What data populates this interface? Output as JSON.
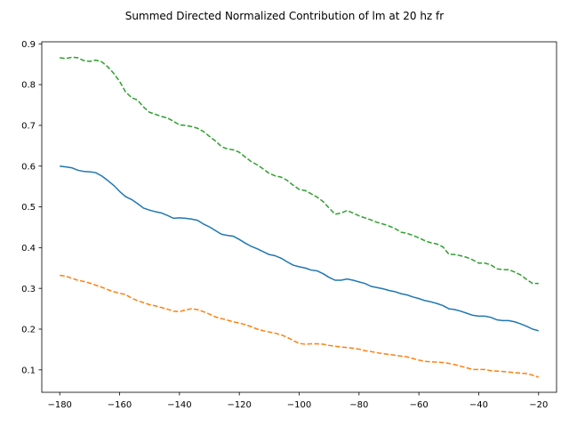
{
  "chart_data": {
    "type": "line",
    "title": "Summed Directed Normalized Contribution of lm at 20 hz fr",
    "xlabel": "",
    "ylabel": "",
    "xlim": [
      -186,
      -14
    ],
    "ylim": [
      0.045,
      0.905
    ],
    "xticks": [
      -180,
      -160,
      -140,
      -120,
      -100,
      -80,
      -60,
      -40,
      -20
    ],
    "xtick_labels": [
      "−180",
      "−160",
      "−140",
      "−120",
      "−100",
      "−80",
      "−60",
      "−40",
      "−20"
    ],
    "yticks": [
      0.1,
      0.2,
      0.3,
      0.4,
      0.5,
      0.6,
      0.7,
      0.8,
      0.9
    ],
    "ytick_labels": [
      "0.1",
      "0.2",
      "0.3",
      "0.4",
      "0.5",
      "0.6",
      "0.7",
      "0.8",
      "0.9"
    ],
    "grid": false,
    "legend": "none",
    "series": [
      {
        "color": "#1f77b4",
        "style": "solid",
        "points": [
          [
            -180,
            0.6
          ],
          [
            -178,
            0.598
          ],
          [
            -176,
            0.596
          ],
          [
            -174,
            0.59
          ],
          [
            -172,
            0.587
          ],
          [
            -170,
            0.586
          ],
          [
            -168,
            0.584
          ],
          [
            -166,
            0.576
          ],
          [
            -164,
            0.565
          ],
          [
            -162,
            0.553
          ],
          [
            -160,
            0.538
          ],
          [
            -158,
            0.525
          ],
          [
            -156,
            0.518
          ],
          [
            -154,
            0.508
          ],
          [
            -152,
            0.497
          ],
          [
            -150,
            0.492
          ],
          [
            -148,
            0.488
          ],
          [
            -146,
            0.485
          ],
          [
            -144,
            0.479
          ],
          [
            -142,
            0.472
          ],
          [
            -140,
            0.473
          ],
          [
            -138,
            0.472
          ],
          [
            -136,
            0.47
          ],
          [
            -134,
            0.467
          ],
          [
            -132,
            0.458
          ],
          [
            -130,
            0.451
          ],
          [
            -128,
            0.442
          ],
          [
            -126,
            0.433
          ],
          [
            -124,
            0.43
          ],
          [
            -122,
            0.428
          ],
          [
            -120,
            0.42
          ],
          [
            -118,
            0.411
          ],
          [
            -116,
            0.403
          ],
          [
            -114,
            0.397
          ],
          [
            -112,
            0.39
          ],
          [
            -110,
            0.383
          ],
          [
            -108,
            0.38
          ],
          [
            -106,
            0.374
          ],
          [
            -104,
            0.365
          ],
          [
            -102,
            0.357
          ],
          [
            -100,
            0.353
          ],
          [
            -98,
            0.35
          ],
          [
            -96,
            0.345
          ],
          [
            -94,
            0.343
          ],
          [
            -92,
            0.336
          ],
          [
            -90,
            0.327
          ],
          [
            -88,
            0.32
          ],
          [
            -86,
            0.32
          ],
          [
            -84,
            0.323
          ],
          [
            -82,
            0.32
          ],
          [
            -80,
            0.316
          ],
          [
            -78,
            0.312
          ],
          [
            -76,
            0.305
          ],
          [
            -74,
            0.302
          ],
          [
            -72,
            0.299
          ],
          [
            -70,
            0.295
          ],
          [
            -68,
            0.292
          ],
          [
            -66,
            0.287
          ],
          [
            -64,
            0.284
          ],
          [
            -62,
            0.279
          ],
          [
            -60,
            0.275
          ],
          [
            -58,
            0.27
          ],
          [
            -56,
            0.267
          ],
          [
            -54,
            0.263
          ],
          [
            -52,
            0.258
          ],
          [
            -50,
            0.25
          ],
          [
            -48,
            0.248
          ],
          [
            -46,
            0.244
          ],
          [
            -44,
            0.239
          ],
          [
            -42,
            0.234
          ],
          [
            -40,
            0.232
          ],
          [
            -38,
            0.232
          ],
          [
            -36,
            0.229
          ],
          [
            -34,
            0.223
          ],
          [
            -32,
            0.221
          ],
          [
            -30,
            0.221
          ],
          [
            -28,
            0.218
          ],
          [
            -26,
            0.213
          ],
          [
            -24,
            0.207
          ],
          [
            -22,
            0.2
          ],
          [
            -20,
            0.196
          ]
        ]
      },
      {
        "color": "#ff7f0e",
        "style": "dashed",
        "points": [
          [
            -180,
            0.332
          ],
          [
            -178,
            0.33
          ],
          [
            -176,
            0.325
          ],
          [
            -174,
            0.32
          ],
          [
            -172,
            0.317
          ],
          [
            -170,
            0.313
          ],
          [
            -168,
            0.308
          ],
          [
            -166,
            0.303
          ],
          [
            -164,
            0.297
          ],
          [
            -162,
            0.292
          ],
          [
            -160,
            0.288
          ],
          [
            -158,
            0.285
          ],
          [
            -156,
            0.276
          ],
          [
            -154,
            0.27
          ],
          [
            -152,
            0.265
          ],
          [
            -150,
            0.26
          ],
          [
            -148,
            0.257
          ],
          [
            -146,
            0.253
          ],
          [
            -144,
            0.249
          ],
          [
            -142,
            0.244
          ],
          [
            -140,
            0.243
          ],
          [
            -138,
            0.247
          ],
          [
            -136,
            0.25
          ],
          [
            -134,
            0.248
          ],
          [
            -132,
            0.243
          ],
          [
            -130,
            0.237
          ],
          [
            -128,
            0.23
          ],
          [
            -126,
            0.226
          ],
          [
            -124,
            0.222
          ],
          [
            -122,
            0.218
          ],
          [
            -120,
            0.215
          ],
          [
            -118,
            0.211
          ],
          [
            -116,
            0.206
          ],
          [
            -114,
            0.2
          ],
          [
            -112,
            0.196
          ],
          [
            -110,
            0.193
          ],
          [
            -108,
            0.19
          ],
          [
            -106,
            0.186
          ],
          [
            -104,
            0.18
          ],
          [
            -102,
            0.172
          ],
          [
            -100,
            0.165
          ],
          [
            -98,
            0.163
          ],
          [
            -96,
            0.164
          ],
          [
            -94,
            0.164
          ],
          [
            -92,
            0.163
          ],
          [
            -90,
            0.16
          ],
          [
            -88,
            0.158
          ],
          [
            -86,
            0.156
          ],
          [
            -84,
            0.155
          ],
          [
            -82,
            0.153
          ],
          [
            -80,
            0.151
          ],
          [
            -78,
            0.147
          ],
          [
            -76,
            0.145
          ],
          [
            -74,
            0.142
          ],
          [
            -72,
            0.14
          ],
          [
            -70,
            0.138
          ],
          [
            -68,
            0.136
          ],
          [
            -66,
            0.134
          ],
          [
            -64,
            0.132
          ],
          [
            -62,
            0.128
          ],
          [
            -60,
            0.124
          ],
          [
            -58,
            0.121
          ],
          [
            -56,
            0.12
          ],
          [
            -54,
            0.119
          ],
          [
            -52,
            0.118
          ],
          [
            -50,
            0.116
          ],
          [
            -48,
            0.113
          ],
          [
            -46,
            0.109
          ],
          [
            -44,
            0.105
          ],
          [
            -42,
            0.101
          ],
          [
            -40,
            0.101
          ],
          [
            -38,
            0.101
          ],
          [
            -36,
            0.098
          ],
          [
            -34,
            0.097
          ],
          [
            -32,
            0.096
          ],
          [
            -30,
            0.095
          ],
          [
            -28,
            0.093
          ],
          [
            -26,
            0.092
          ],
          [
            -24,
            0.091
          ],
          [
            -22,
            0.087
          ],
          [
            -20,
            0.082
          ]
        ]
      },
      {
        "color": "#2ca02c",
        "style": "dashed",
        "points": [
          [
            -180,
            0.866
          ],
          [
            -178,
            0.864
          ],
          [
            -176,
            0.867
          ],
          [
            -174,
            0.866
          ],
          [
            -172,
            0.859
          ],
          [
            -170,
            0.857
          ],
          [
            -168,
            0.86
          ],
          [
            -166,
            0.856
          ],
          [
            -164,
            0.844
          ],
          [
            -162,
            0.828
          ],
          [
            -160,
            0.808
          ],
          [
            -158,
            0.782
          ],
          [
            -156,
            0.768
          ],
          [
            -154,
            0.762
          ],
          [
            -152,
            0.745
          ],
          [
            -150,
            0.732
          ],
          [
            -148,
            0.727
          ],
          [
            -146,
            0.722
          ],
          [
            -144,
            0.718
          ],
          [
            -142,
            0.71
          ],
          [
            -140,
            0.701
          ],
          [
            -138,
            0.7
          ],
          [
            -136,
            0.697
          ],
          [
            -134,
            0.693
          ],
          [
            -132,
            0.685
          ],
          [
            -130,
            0.673
          ],
          [
            -128,
            0.662
          ],
          [
            -126,
            0.648
          ],
          [
            -124,
            0.642
          ],
          [
            -122,
            0.64
          ],
          [
            -120,
            0.634
          ],
          [
            -118,
            0.622
          ],
          [
            -116,
            0.611
          ],
          [
            -114,
            0.603
          ],
          [
            -112,
            0.593
          ],
          [
            -110,
            0.582
          ],
          [
            -108,
            0.576
          ],
          [
            -106,
            0.573
          ],
          [
            -104,
            0.565
          ],
          [
            -102,
            0.553
          ],
          [
            -100,
            0.543
          ],
          [
            -98,
            0.54
          ],
          [
            -96,
            0.532
          ],
          [
            -94,
            0.524
          ],
          [
            -92,
            0.513
          ],
          [
            -90,
            0.497
          ],
          [
            -88,
            0.482
          ],
          [
            -86,
            0.485
          ],
          [
            -84,
            0.491
          ],
          [
            -82,
            0.485
          ],
          [
            -80,
            0.478
          ],
          [
            -78,
            0.473
          ],
          [
            -76,
            0.468
          ],
          [
            -74,
            0.462
          ],
          [
            -72,
            0.458
          ],
          [
            -70,
            0.453
          ],
          [
            -68,
            0.447
          ],
          [
            -66,
            0.438
          ],
          [
            -64,
            0.435
          ],
          [
            -62,
            0.43
          ],
          [
            -60,
            0.424
          ],
          [
            -58,
            0.417
          ],
          [
            -56,
            0.412
          ],
          [
            -54,
            0.409
          ],
          [
            -52,
            0.402
          ],
          [
            -50,
            0.384
          ],
          [
            -48,
            0.383
          ],
          [
            -46,
            0.38
          ],
          [
            -44,
            0.376
          ],
          [
            -42,
            0.37
          ],
          [
            -40,
            0.362
          ],
          [
            -38,
            0.362
          ],
          [
            -36,
            0.358
          ],
          [
            -34,
            0.348
          ],
          [
            -32,
            0.346
          ],
          [
            -30,
            0.346
          ],
          [
            -28,
            0.34
          ],
          [
            -26,
            0.333
          ],
          [
            -24,
            0.322
          ],
          [
            -22,
            0.312
          ],
          [
            -20,
            0.312
          ]
        ]
      }
    ]
  }
}
